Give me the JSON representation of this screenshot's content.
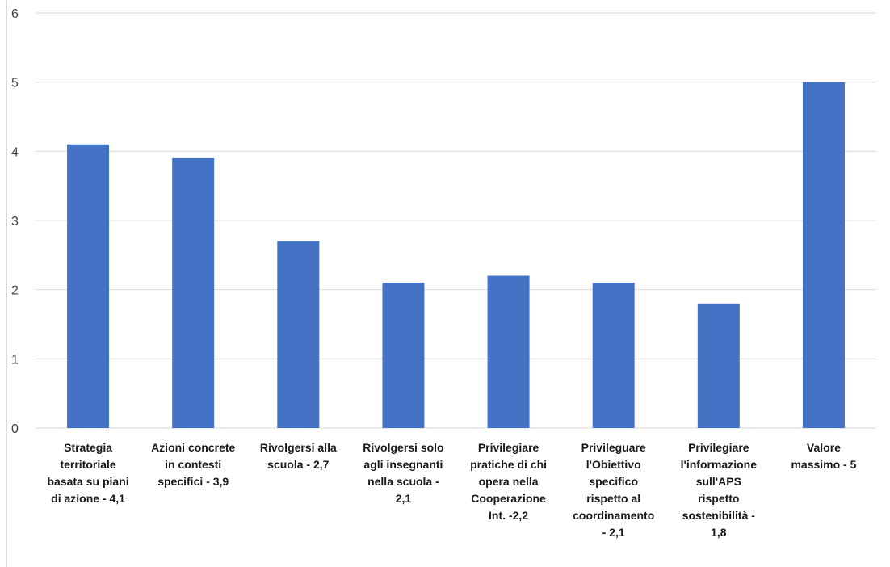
{
  "chart_data": {
    "type": "bar",
    "title": "",
    "xlabel": "",
    "ylabel": "",
    "ylim": [
      0,
      6
    ],
    "yticks": [
      0,
      1,
      2,
      3,
      4,
      5,
      6
    ],
    "grid": true,
    "legend": "none",
    "bar_color": "#4472c4",
    "grid_color": "#d9d9d9",
    "categories": [
      [
        "Strategia",
        "territoriale",
        "basata su piani",
        "di azione - 4,1"
      ],
      [
        "Azioni concrete",
        "in contesti",
        "specifici - 3,9"
      ],
      [
        "Rivolgersi alla",
        "scuola - 2,7"
      ],
      [
        "Rivolgersi solo",
        "agli insegnanti",
        "nella scuola -",
        "2,1"
      ],
      [
        "Privilegiare",
        "pratiche di chi",
        "opera nella",
        "Cooperazione",
        "Int. -2,2"
      ],
      [
        "Privileguare",
        "l'Obiettivo",
        "specifico",
        "rispetto al",
        "coordinamento",
        "- 2,1"
      ],
      [
        "Privilegiare",
        "l'informazione",
        "sull'APS",
        "rispetto",
        "sostenibilità -",
        "1,8"
      ],
      [
        "Valore",
        "massimo - 5"
      ]
    ],
    "values": [
      4.1,
      3.9,
      2.7,
      2.1,
      2.2,
      2.1,
      1.8,
      5
    ]
  }
}
